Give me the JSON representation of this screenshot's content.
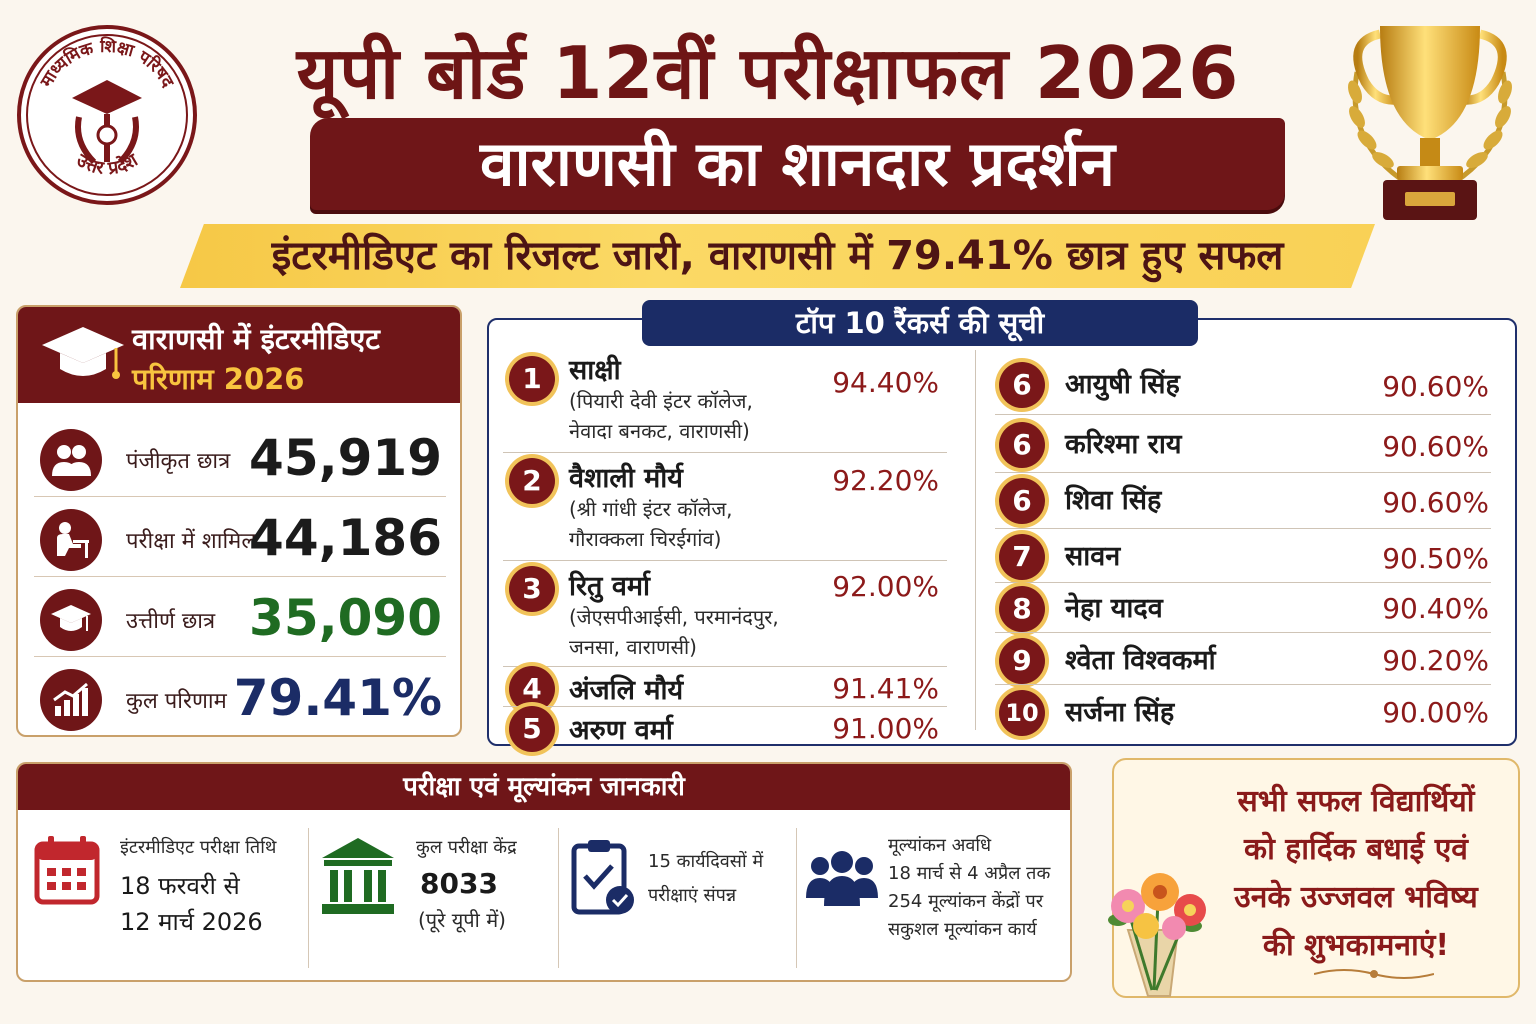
{
  "header": {
    "logo_top_text": "माध्यमिक शिक्षा परिषद",
    "logo_bottom_text": "उत्तर प्रदेश",
    "title": "यूपी बोर्ड 12वीं परीक्षाफल 2026",
    "subtitle": "वाराणसी का शानदार प्रदर्शन",
    "strip_text": "इंटरमीडिएट का रिजल्ट जारी, वाराणसी में 79.41% छात्र हुए सफल"
  },
  "stats": {
    "title_line1": "वाराणसी में इंटरमीडिएट",
    "title_line2": "परिणाम 2026",
    "rows": [
      {
        "label": "पंजीकृत छात्र",
        "value": "45,919",
        "icon": "students-icon",
        "color": "#1b1b1b"
      },
      {
        "label": "परीक्षा में शामिल",
        "value": "44,186",
        "icon": "exam-desk-icon",
        "color": "#1b1b1b"
      },
      {
        "label": "उत्तीर्ण छात्र",
        "value": "35,090",
        "icon": "graduation-cap-icon",
        "color": "#1f6b22"
      },
      {
        "label": "कुल परिणाम",
        "value": "79.41%",
        "icon": "growth-chart-icon",
        "color": "#1b2c66"
      }
    ]
  },
  "toppers": {
    "title": "टॉप 10 रैंकर्स की सूची",
    "left": [
      {
        "rank": "1",
        "name": "साक्षी",
        "school1": "(पियारी देवी इंटर कॉलेज,",
        "school2": "नेवादा बनकट, वाराणसी)",
        "pct": "94.40%"
      },
      {
        "rank": "2",
        "name": "वैशाली मौर्य",
        "school1": "(श्री गांधी इंटर कॉलेज,",
        "school2": "गौराक्कला चिरईगांव)",
        "pct": "92.20%"
      },
      {
        "rank": "3",
        "name": "रितु वर्मा",
        "school1": "(जेएसपीआईसी, परमानंदपुर,",
        "school2": "जनसा, वाराणसी)",
        "pct": "92.00%"
      },
      {
        "rank": "4",
        "name": "अंजलि मौर्य",
        "school1": "",
        "school2": "",
        "pct": "91.41%"
      },
      {
        "rank": "5",
        "name": "अरुण वर्मा",
        "school1": "",
        "school2": "",
        "pct": "91.00%"
      }
    ],
    "right": [
      {
        "rank": "6",
        "name": "आयुषी सिंह",
        "pct": "90.60%"
      },
      {
        "rank": "6",
        "name": "करिश्मा राय",
        "pct": "90.60%"
      },
      {
        "rank": "6",
        "name": "शिवा सिंह",
        "pct": "90.60%"
      },
      {
        "rank": "7",
        "name": "सावन",
        "pct": "90.50%"
      },
      {
        "rank": "8",
        "name": "नेहा यादव",
        "pct": "90.40%"
      },
      {
        "rank": "9",
        "name": "श्वेता विश्वकर्मा",
        "pct": "90.20%"
      },
      {
        "rank": "10",
        "name": "सर्जना सिंह",
        "pct": "90.00%"
      }
    ]
  },
  "info": {
    "title": "परीक्षा एवं मूल्यांकन जानकारी",
    "c1_label": "इंटरमीडिएट परीक्षा तिथि",
    "c1_line1": "18 फरवरी से",
    "c1_line2": "12 मार्च 2026",
    "c2_label": "कुल परीक्षा केंद्र",
    "c2_value": "8033",
    "c2_note": "(पूरे यूपी में)",
    "c3_line1": "15 कार्यदिवसों में",
    "c3_line2": "परीक्षाएं संपन्न",
    "c4_line1": "मूल्यांकन अवधि",
    "c4_line2": "18 मार्च से 4 अप्रैल तक",
    "c4_line3": "254 मूल्यांकन केंद्रों पर",
    "c4_line4": "सकुशल मूल्यांकन कार्य"
  },
  "congrats": {
    "line1": "सभी सफल विद्यार्थियों",
    "line2": "को हार्दिक बधाई एवं",
    "line3": "उनके उज्जवल भविष्य",
    "line4": "की शुभकामनाएं!"
  },
  "colors": {
    "maroon": "#6f1618",
    "navy": "#1b2c66",
    "gold": "#f8c43f",
    "green": "#1f6b22",
    "percent_red": "#8c1a1a"
  }
}
